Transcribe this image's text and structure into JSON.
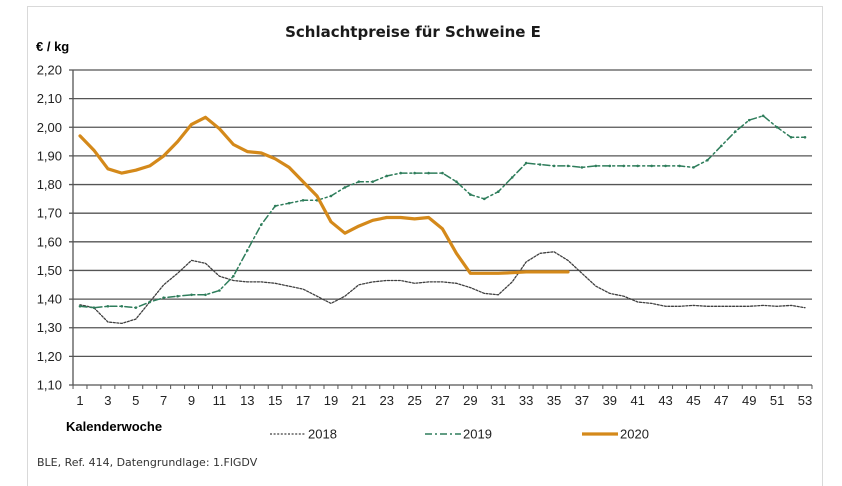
{
  "chart_data": {
    "type": "line",
    "title": "Schlachtpreise  für Schweine E",
    "ylabel": "€ / kg",
    "xlabel": "Kalenderwoche",
    "ylim": [
      1.1,
      2.2
    ],
    "y_ticks": [
      "1,10",
      "1,20",
      "1,30",
      "1,40",
      "1,50",
      "1,60",
      "1,70",
      "1,80",
      "1,90",
      "2,00",
      "2,10",
      "2,20"
    ],
    "y_tick_values": [
      1.1,
      1.2,
      1.3,
      1.4,
      1.5,
      1.6,
      1.7,
      1.8,
      1.9,
      2.0,
      2.1,
      2.2
    ],
    "x_range": [
      1,
      53
    ],
    "x_tick_labels": [
      "1",
      "3",
      "5",
      "7",
      "9",
      "11",
      "13",
      "15",
      "17",
      "19",
      "21",
      "23",
      "25",
      "27",
      "29",
      "31",
      "33",
      "35",
      "37",
      "39",
      "41",
      "43",
      "45",
      "47",
      "49",
      "51",
      "53"
    ],
    "grid": "horizontal",
    "legend_position": "bottom",
    "series": [
      {
        "name": "2018",
        "style": "dotted",
        "color": "#404040",
        "x": [
          1,
          2,
          3,
          4,
          5,
          6,
          7,
          8,
          9,
          10,
          11,
          12,
          13,
          14,
          15,
          16,
          17,
          18,
          19,
          20,
          21,
          22,
          23,
          24,
          25,
          26,
          27,
          28,
          29,
          30,
          31,
          32,
          33,
          34,
          35,
          36,
          37,
          38,
          39,
          40,
          41,
          42,
          43,
          44,
          45,
          46,
          47,
          48,
          49,
          50,
          51,
          52,
          53
        ],
        "values": [
          1.38,
          1.37,
          1.32,
          1.315,
          1.33,
          1.39,
          1.45,
          1.49,
          1.535,
          1.525,
          1.48,
          1.465,
          1.46,
          1.46,
          1.455,
          1.445,
          1.435,
          1.41,
          1.385,
          1.41,
          1.45,
          1.46,
          1.465,
          1.465,
          1.455,
          1.46,
          1.46,
          1.455,
          1.44,
          1.42,
          1.415,
          1.46,
          1.53,
          1.56,
          1.565,
          1.535,
          1.49,
          1.445,
          1.42,
          1.41,
          1.39,
          1.385,
          1.375,
          1.375,
          1.378,
          1.375,
          1.375,
          1.375,
          1.375,
          1.378,
          1.375,
          1.378,
          1.37
        ]
      },
      {
        "name": "2019",
        "style": "dash-dot",
        "color": "#2e7d5b",
        "x": [
          1,
          2,
          3,
          4,
          5,
          6,
          7,
          8,
          9,
          10,
          11,
          12,
          13,
          14,
          15,
          16,
          17,
          18,
          19,
          20,
          21,
          22,
          23,
          24,
          25,
          26,
          27,
          28,
          29,
          30,
          31,
          32,
          33,
          34,
          35,
          36,
          37,
          38,
          39,
          40,
          41,
          42,
          43,
          44,
          45,
          46,
          47,
          48,
          49,
          50,
          51,
          52,
          53
        ],
        "values": [
          1.375,
          1.37,
          1.375,
          1.375,
          1.37,
          1.39,
          1.405,
          1.41,
          1.415,
          1.415,
          1.43,
          1.48,
          1.57,
          1.66,
          1.725,
          1.735,
          1.745,
          1.745,
          1.76,
          1.79,
          1.81,
          1.81,
          1.83,
          1.84,
          1.84,
          1.84,
          1.84,
          1.81,
          1.765,
          1.75,
          1.775,
          1.825,
          1.875,
          1.87,
          1.865,
          1.865,
          1.86,
          1.865,
          1.865,
          1.865,
          1.865,
          1.865,
          1.865,
          1.865,
          1.86,
          1.885,
          1.935,
          1.985,
          2.025,
          2.04,
          2.0,
          1.965,
          1.965
        ]
      },
      {
        "name": "2020",
        "style": "solid",
        "color": "#d4891a",
        "x": [
          1,
          2,
          3,
          4,
          5,
          6,
          7,
          8,
          9,
          10,
          11,
          12,
          13,
          14,
          15,
          16,
          17,
          18,
          19,
          20,
          21,
          22,
          23,
          24,
          25,
          26,
          27,
          28,
          29,
          30,
          31,
          32,
          33,
          34,
          35,
          36
        ],
        "values": [
          1.97,
          1.92,
          1.855,
          1.84,
          1.85,
          1.865,
          1.9,
          1.95,
          2.01,
          2.035,
          1.995,
          1.94,
          1.915,
          1.91,
          1.89,
          1.86,
          1.81,
          1.76,
          1.67,
          1.63,
          1.655,
          1.675,
          1.685,
          1.685,
          1.68,
          1.685,
          1.645,
          1.56,
          1.49,
          1.49,
          1.49,
          1.492,
          1.495,
          1.495,
          1.495,
          1.495
        ]
      }
    ],
    "source": "BLE, Ref. 414,  Datengrundlage: 1.FlGDV"
  }
}
